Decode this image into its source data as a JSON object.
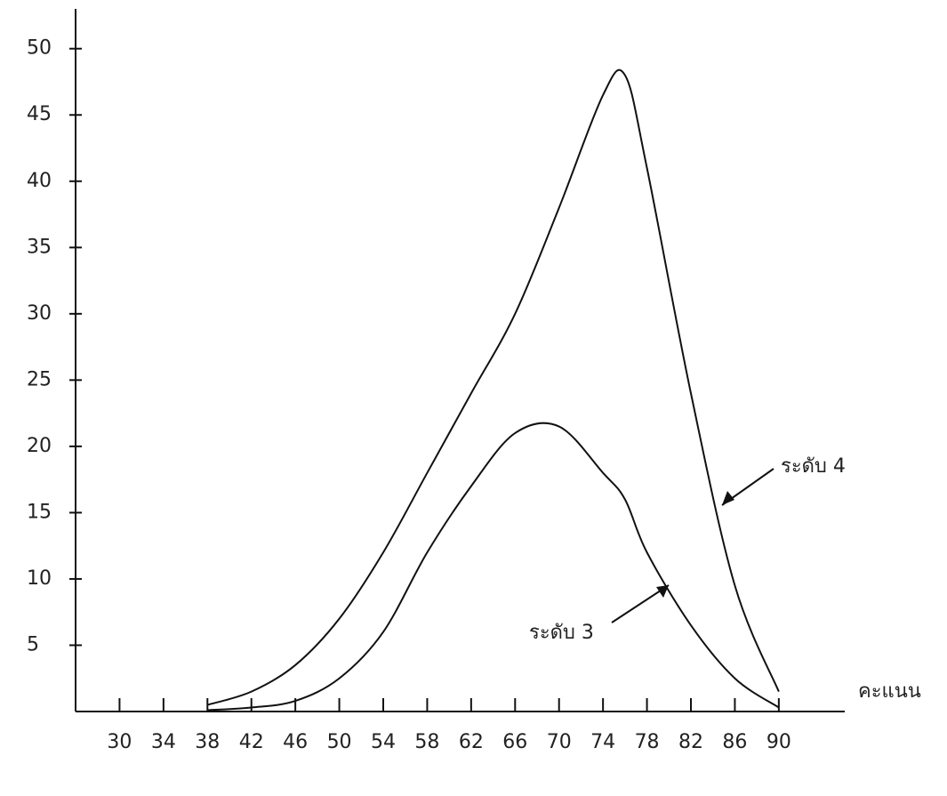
{
  "chart_data": {
    "type": "line",
    "x_label": "คะแนน",
    "x": [
      38,
      42,
      46,
      50,
      54,
      58,
      62,
      66,
      70,
      74,
      76,
      78,
      82,
      86,
      90
    ],
    "series": [
      {
        "name": "ระดับ 4",
        "color": "#111111",
        "values": [
          0.5,
          1.5,
          3.5,
          7,
          12,
          18,
          24,
          30,
          38,
          46.5,
          48,
          41,
          24,
          9.5,
          1.5
        ]
      },
      {
        "name": "ระดับ 3",
        "color": "#111111",
        "values": [
          0.1,
          0.3,
          0.8,
          2.5,
          6,
          12,
          17,
          21,
          21.5,
          18,
          16,
          12,
          6.5,
          2.5,
          0.3
        ]
      }
    ],
    "xlim": [
      26,
      96
    ],
    "ylim": [
      0,
      53
    ],
    "xticks": [
      30,
      34,
      38,
      42,
      46,
      50,
      54,
      58,
      62,
      66,
      70,
      74,
      78,
      82,
      86,
      90
    ],
    "yticks": [
      5,
      10,
      15,
      20,
      25,
      30,
      35,
      40,
      45,
      50
    ]
  }
}
